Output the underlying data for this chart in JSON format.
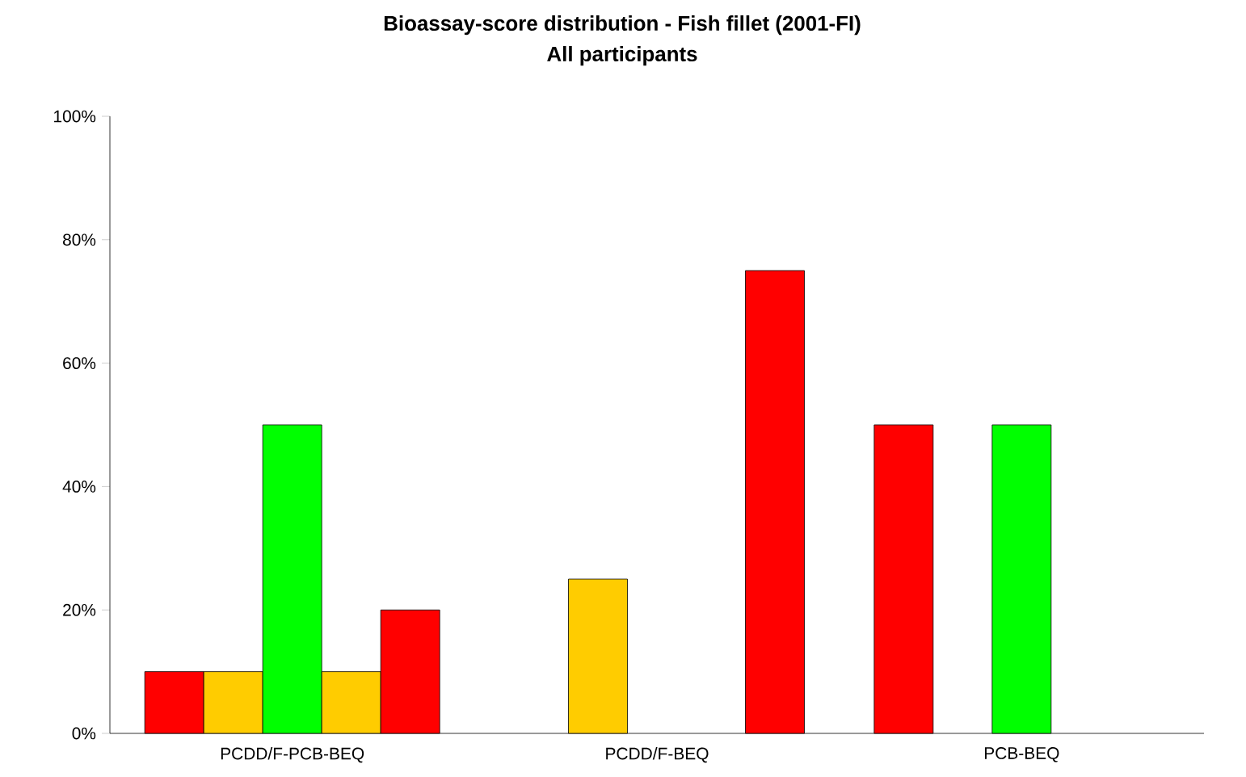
{
  "chart_data": {
    "type": "bar",
    "title": "Bioassay-score distribution - Fish fillet (2001-FI)",
    "subtitle": "All participants",
    "categories": [
      "PCDD/F-PCB-BEQ",
      "PCDD/F-BEQ",
      "PCB-BEQ"
    ],
    "series": [
      {
        "color": "#ff0000",
        "values": [
          10,
          null,
          50
        ]
      },
      {
        "color": "#ffcc00",
        "values": [
          10,
          25,
          null
        ]
      },
      {
        "color": "#00ff00",
        "values": [
          50,
          null,
          50
        ]
      },
      {
        "color": "#ffcc00",
        "values": [
          10,
          null,
          null
        ]
      },
      {
        "color": "#ff0000",
        "values": [
          20,
          75,
          null
        ]
      }
    ],
    "ylim": [
      0,
      100
    ],
    "yticks": [
      {
        "value": 0,
        "label": "0%"
      },
      {
        "value": 20,
        "label": "20%"
      },
      {
        "value": 40,
        "label": "40%"
      },
      {
        "value": 60,
        "label": "60%"
      },
      {
        "value": 80,
        "label": "80%"
      },
      {
        "value": 100,
        "label": "100%"
      }
    ],
    "grid": false
  }
}
